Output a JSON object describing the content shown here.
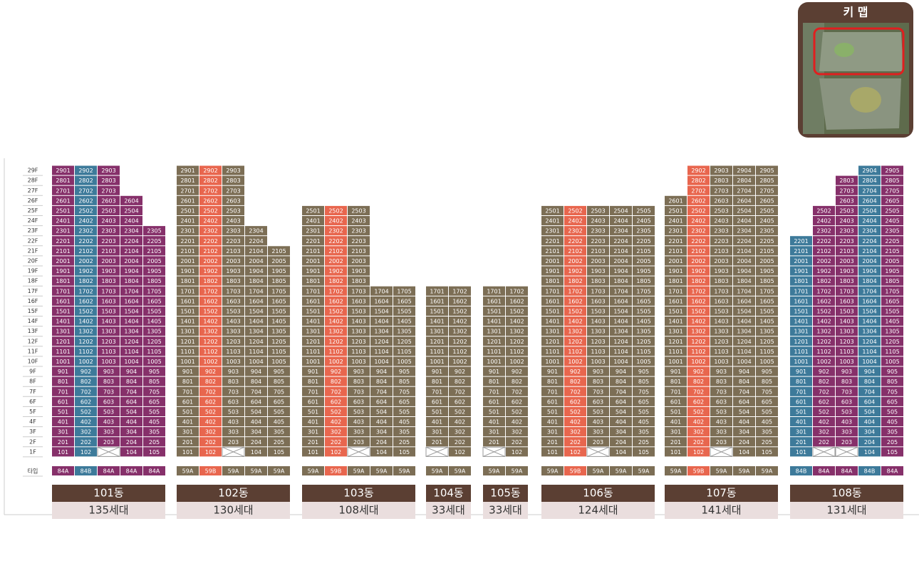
{
  "key_map": {
    "title": "키 맵"
  },
  "floor_labels": [
    "29F",
    "28F",
    "27F",
    "26F",
    "25F",
    "24F",
    "23F",
    "22F",
    "21F",
    "20F",
    "19F",
    "18F",
    "17F",
    "16F",
    "15F",
    "14F",
    "13F",
    "12F",
    "11F",
    "10F",
    "9F",
    "8F",
    "7F",
    "6F",
    "5F",
    "4F",
    "3F",
    "2F",
    "1F"
  ],
  "type_label": "타입",
  "buildings": [
    {
      "name": "101동",
      "households": "135세대",
      "columns": [
        {
          "type": "84A",
          "color": "#86306a",
          "units": [
            2901,
            2801,
            2701,
            2601,
            2501,
            2401,
            2301,
            2201,
            2101,
            2001,
            1901,
            1801,
            1701,
            1601,
            1501,
            1401,
            1301,
            1201,
            1101,
            1001,
            901,
            801,
            701,
            601,
            501,
            401,
            301,
            201,
            101
          ]
        },
        {
          "type": "84B",
          "color": "#3d7a9a",
          "units": [
            2902,
            2802,
            2702,
            2602,
            2502,
            2402,
            2302,
            2202,
            2102,
            2002,
            1902,
            1802,
            1702,
            1602,
            1502,
            1402,
            1302,
            1202,
            1102,
            1002,
            902,
            802,
            702,
            602,
            502,
            402,
            302,
            202,
            102
          ]
        },
        {
          "type": "84A",
          "color": "#86306a",
          "units": [
            2903,
            2803,
            2703,
            2603,
            2503,
            2403,
            2303,
            2203,
            2103,
            2003,
            1903,
            1803,
            1703,
            1603,
            1503,
            1403,
            1303,
            1203,
            1103,
            1003,
            903,
            803,
            703,
            603,
            503,
            403,
            303,
            203,
            null
          ]
        },
        {
          "type": "84A",
          "color": "#86306a",
          "units": [
            2604,
            2504,
            2404,
            2304,
            2204,
            2104,
            2004,
            1904,
            1804,
            1704,
            1604,
            1504,
            1404,
            1304,
            1204,
            1104,
            1004,
            904,
            804,
            704,
            604,
            504,
            404,
            304,
            204,
            104
          ]
        },
        {
          "type": "84A",
          "color": "#86306a",
          "units": [
            2305,
            2205,
            2105,
            2005,
            1905,
            1805,
            1705,
            1605,
            1505,
            1405,
            1305,
            1205,
            1105,
            1005,
            905,
            805,
            705,
            605,
            505,
            405,
            305,
            205,
            105
          ]
        }
      ]
    },
    {
      "name": "102동",
      "households": "130세대",
      "columns": [
        {
          "type": "59A",
          "color": "#7c6e55",
          "units": [
            2901,
            2801,
            2701,
            2601,
            2501,
            2401,
            2301,
            2201,
            2101,
            2001,
            1901,
            1801,
            1701,
            1601,
            1501,
            1401,
            1301,
            1201,
            1101,
            1001,
            901,
            801,
            701,
            601,
            501,
            401,
            301,
            201,
            101
          ]
        },
        {
          "type": "59B",
          "color": "#e8664e",
          "units": [
            2902,
            2802,
            2702,
            2602,
            2502,
            2402,
            2302,
            2202,
            2102,
            2002,
            1902,
            1802,
            1702,
            1602,
            1502,
            1402,
            1302,
            1202,
            1102,
            1002,
            902,
            802,
            702,
            602,
            502,
            402,
            302,
            202,
            102
          ]
        },
        {
          "type": "59A",
          "color": "#7c6e55",
          "units": [
            2903,
            2803,
            2703,
            2603,
            2503,
            2403,
            2303,
            2203,
            2103,
            2003,
            1903,
            1803,
            1703,
            1603,
            1503,
            1403,
            1303,
            1203,
            1103,
            1003,
            903,
            803,
            703,
            603,
            503,
            403,
            303,
            203,
            null
          ]
        },
        {
          "type": "59A",
          "color": "#7c6e55",
          "units": [
            2304,
            2204,
            2104,
            2004,
            1904,
            1804,
            1704,
            1604,
            1504,
            1404,
            1304,
            1204,
            1104,
            1004,
            904,
            804,
            704,
            604,
            504,
            404,
            304,
            204,
            104
          ]
        },
        {
          "type": "59A",
          "color": "#7c6e55",
          "units": [
            2105,
            2005,
            1905,
            1805,
            1705,
            1605,
            1505,
            1405,
            1305,
            1205,
            1105,
            1005,
            905,
            805,
            705,
            605,
            505,
            405,
            305,
            205,
            105
          ]
        }
      ]
    },
    {
      "name": "103동",
      "households": "108세대",
      "columns": [
        {
          "type": "59A",
          "color": "#7c6e55",
          "units": [
            2501,
            2401,
            2301,
            2201,
            2101,
            2001,
            1901,
            1801,
            1701,
            1601,
            1501,
            1401,
            1301,
            1201,
            1101,
            1001,
            901,
            801,
            701,
            601,
            501,
            401,
            301,
            201,
            101
          ]
        },
        {
          "type": "59B",
          "color": "#e8664e",
          "units": [
            2502,
            2402,
            2302,
            2202,
            2102,
            2002,
            1902,
            1802,
            1702,
            1602,
            1502,
            1402,
            1302,
            1202,
            1102,
            1002,
            902,
            802,
            702,
            602,
            502,
            402,
            302,
            202,
            102
          ]
        },
        {
          "type": "59A",
          "color": "#7c6e55",
          "units": [
            2503,
            2403,
            2303,
            2203,
            2103,
            2003,
            1903,
            1803,
            1703,
            1603,
            1503,
            1403,
            1303,
            1203,
            1103,
            1003,
            903,
            803,
            703,
            603,
            503,
            403,
            303,
            203,
            null
          ]
        },
        {
          "type": "59A",
          "color": "#7c6e55",
          "units": [
            1704,
            1604,
            1504,
            1404,
            1304,
            1204,
            1104,
            1004,
            904,
            804,
            704,
            604,
            504,
            404,
            304,
            204,
            104
          ]
        },
        {
          "type": "59A",
          "color": "#7c6e55",
          "units": [
            1705,
            1605,
            1505,
            1405,
            1305,
            1205,
            1105,
            1005,
            905,
            805,
            705,
            605,
            505,
            405,
            305,
            205,
            105
          ]
        }
      ]
    },
    {
      "name": "104동",
      "households": "33세대",
      "columns": [
        {
          "type": "59A",
          "color": "#7c6e55",
          "units": [
            1701,
            1601,
            1501,
            1401,
            1301,
            1201,
            1101,
            1001,
            901,
            801,
            701,
            601,
            501,
            401,
            301,
            201,
            null
          ]
        },
        {
          "type": "59A",
          "color": "#7c6e55",
          "units": [
            1702,
            1602,
            1502,
            1402,
            1302,
            1202,
            1102,
            1002,
            902,
            802,
            702,
            602,
            502,
            402,
            302,
            202,
            102
          ]
        }
      ]
    },
    {
      "name": "105동",
      "households": "33세대",
      "columns": [
        {
          "type": "59A",
          "color": "#7c6e55",
          "units": [
            1701,
            1601,
            1501,
            1401,
            1301,
            1201,
            1101,
            1001,
            901,
            801,
            701,
            601,
            501,
            401,
            301,
            201,
            null
          ]
        },
        {
          "type": "59A",
          "color": "#7c6e55",
          "units": [
            1702,
            1602,
            1502,
            1402,
            1302,
            1202,
            1102,
            1002,
            902,
            802,
            702,
            602,
            502,
            402,
            302,
            202,
            102
          ]
        }
      ]
    },
    {
      "name": "106동",
      "households": "124세대",
      "columns": [
        {
          "type": "59A",
          "color": "#7c6e55",
          "units": [
            2501,
            2401,
            2301,
            2201,
            2101,
            2001,
            1901,
            1801,
            1701,
            1601,
            1501,
            1401,
            1301,
            1201,
            1101,
            1001,
            901,
            801,
            701,
            601,
            501,
            401,
            301,
            201,
            101
          ]
        },
        {
          "type": "59B",
          "color": "#e8664e",
          "units": [
            2502,
            2402,
            2302,
            2202,
            2102,
            2002,
            1902,
            1802,
            1702,
            1602,
            1502,
            1402,
            1302,
            1202,
            1102,
            1002,
            902,
            802,
            702,
            602,
            502,
            402,
            302,
            202,
            102
          ]
        },
        {
          "type": "59A",
          "color": "#7c6e55",
          "units": [
            2503,
            2403,
            2303,
            2203,
            2103,
            2003,
            1903,
            1803,
            1703,
            1603,
            1503,
            1403,
            1303,
            1203,
            1103,
            1003,
            903,
            803,
            703,
            603,
            503,
            403,
            303,
            203,
            null
          ]
        },
        {
          "type": "59A",
          "color": "#7c6e55",
          "units": [
            2504,
            2404,
            2304,
            2204,
            2104,
            2004,
            1904,
            1804,
            1704,
            1604,
            1504,
            1404,
            1304,
            1204,
            1104,
            1004,
            904,
            804,
            704,
            604,
            504,
            404,
            304,
            204,
            104
          ]
        },
        {
          "type": "59A",
          "color": "#7c6e55",
          "units": [
            2505,
            2405,
            2305,
            2205,
            2105,
            2005,
            1905,
            1805,
            1705,
            1605,
            1505,
            1405,
            1305,
            1205,
            1105,
            1005,
            905,
            805,
            705,
            605,
            505,
            405,
            305,
            205,
            105
          ]
        }
      ]
    },
    {
      "name": "107동",
      "households": "141세대",
      "columns": [
        {
          "type": "59A",
          "color": "#7c6e55",
          "units": [
            2601,
            2501,
            2401,
            2301,
            2201,
            2101,
            2001,
            1901,
            1801,
            1701,
            1601,
            1501,
            1401,
            1301,
            1201,
            1101,
            1001,
            901,
            801,
            701,
            601,
            501,
            401,
            301,
            201,
            101
          ]
        },
        {
          "type": "59B",
          "color": "#e8664e",
          "units": [
            2902,
            2802,
            2702,
            2602,
            2502,
            2402,
            2302,
            2202,
            2102,
            2002,
            1902,
            1802,
            1702,
            1602,
            1502,
            1402,
            1302,
            1202,
            1102,
            1002,
            902,
            802,
            702,
            602,
            502,
            402,
            302,
            202,
            102
          ]
        },
        {
          "type": "59A",
          "color": "#7c6e55",
          "units": [
            2903,
            2803,
            2703,
            2603,
            2503,
            2403,
            2303,
            2203,
            2103,
            2003,
            1903,
            1803,
            1703,
            1603,
            1503,
            1403,
            1303,
            1203,
            1103,
            1003,
            903,
            803,
            703,
            603,
            503,
            403,
            303,
            203,
            null
          ]
        },
        {
          "type": "59A",
          "color": "#7c6e55",
          "units": [
            2904,
            2804,
            2704,
            2604,
            2504,
            2404,
            2304,
            2204,
            2104,
            2004,
            1904,
            1804,
            1704,
            1604,
            1504,
            1404,
            1304,
            1204,
            1104,
            1004,
            904,
            804,
            704,
            604,
            504,
            404,
            304,
            204,
            104
          ]
        },
        {
          "type": "59A",
          "color": "#7c6e55",
          "units": [
            2905,
            2805,
            2705,
            2605,
            2505,
            2405,
            2305,
            2205,
            2105,
            2005,
            1905,
            1805,
            1705,
            1605,
            1505,
            1405,
            1305,
            1205,
            1105,
            1005,
            905,
            805,
            705,
            605,
            505,
            405,
            305,
            205,
            105
          ]
        }
      ]
    },
    {
      "name": "108동",
      "households": "131세대",
      "columns": [
        {
          "type": "84B",
          "color": "#3d7a9a",
          "units": [
            2201,
            2101,
            2001,
            1901,
            1801,
            1701,
            1601,
            1501,
            1401,
            1301,
            1201,
            1101,
            1001,
            901,
            801,
            701,
            601,
            501,
            401,
            301,
            201,
            101
          ]
        },
        {
          "type": "84A",
          "color": "#86306a",
          "units": [
            2502,
            2402,
            2302,
            2202,
            2102,
            2002,
            1902,
            1802,
            1702,
            1602,
            1502,
            1402,
            1302,
            1202,
            1102,
            1002,
            902,
            802,
            702,
            602,
            502,
            402,
            302,
            202,
            null
          ]
        },
        {
          "type": "84A",
          "color": "#86306a",
          "units": [
            2803,
            2703,
            2603,
            2503,
            2403,
            2303,
            2203,
            2103,
            2003,
            1903,
            1803,
            1703,
            1603,
            1503,
            1403,
            1303,
            1203,
            1103,
            1003,
            903,
            803,
            703,
            603,
            503,
            403,
            303,
            203,
            null
          ]
        },
        {
          "type": "84B",
          "color": "#3d7a9a",
          "units": [
            2904,
            2804,
            2704,
            2604,
            2504,
            2404,
            2304,
            2204,
            2104,
            2004,
            1904,
            1804,
            1704,
            1604,
            1504,
            1404,
            1304,
            1204,
            1104,
            1004,
            904,
            804,
            704,
            604,
            504,
            404,
            304,
            204,
            104
          ]
        },
        {
          "type": "84A",
          "color": "#86306a",
          "units": [
            2905,
            2805,
            2705,
            2605,
            2505,
            2405,
            2305,
            2205,
            2105,
            2005,
            1905,
            1805,
            1705,
            1605,
            1505,
            1405,
            1305,
            1205,
            1105,
            1005,
            905,
            805,
            705,
            605,
            505,
            405,
            305,
            205,
            105
          ]
        }
      ]
    }
  ]
}
